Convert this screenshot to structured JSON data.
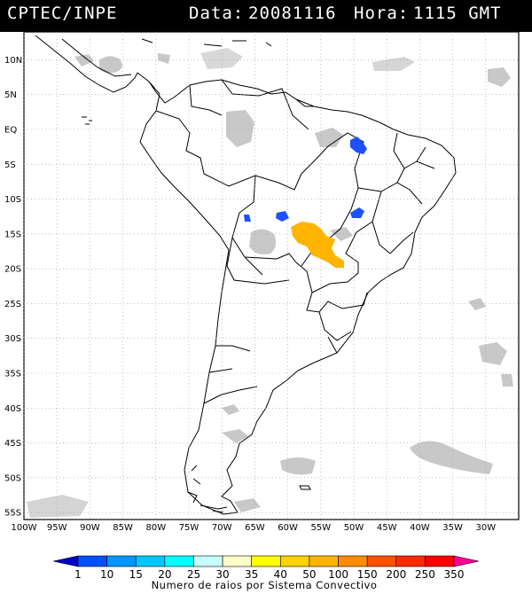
{
  "header": {
    "source": "CPTEC/INPE",
    "date_label": "Data:",
    "date_value": "20081116",
    "time_label": "Hora:",
    "time_value": "1115 GMT"
  },
  "map": {
    "lon_range": [
      -100,
      -25
    ],
    "lat_range": [
      -56,
      14
    ],
    "lat_ticks": [
      "10N",
      "5N",
      "EQ",
      "5S",
      "10S",
      "15S",
      "20S",
      "25S",
      "30S",
      "35S",
      "40S",
      "45S",
      "50S",
      "55S"
    ],
    "lon_ticks": [
      "100W",
      "95W",
      "90W",
      "85W",
      "80W",
      "75W",
      "70W",
      "65W",
      "60W",
      "55W",
      "50W",
      "45W",
      "40W",
      "35W",
      "30W"
    ],
    "colors": {
      "cloud": "#c8c8c8",
      "border": "#000000",
      "grid": "#9a9a9a",
      "lightning_blue": "#1e50ff",
      "lightning_orange": "#ffb400"
    }
  },
  "colorbar": {
    "title": "Numero de raios por Sistema Convectivo",
    "labels": [
      "1",
      "10",
      "15",
      "20",
      "25",
      "30",
      "35",
      "40",
      "50",
      "100",
      "150",
      "200",
      "250",
      "350"
    ],
    "colors": [
      "#0000c8",
      "#0050ff",
      "#0096ff",
      "#00c8ff",
      "#00ffff",
      "#c8ffff",
      "#ffffc8",
      "#ffff00",
      "#ffd200",
      "#ffb400",
      "#ff8c00",
      "#ff5000",
      "#ff2800",
      "#ff0000",
      "#ff0096"
    ]
  }
}
